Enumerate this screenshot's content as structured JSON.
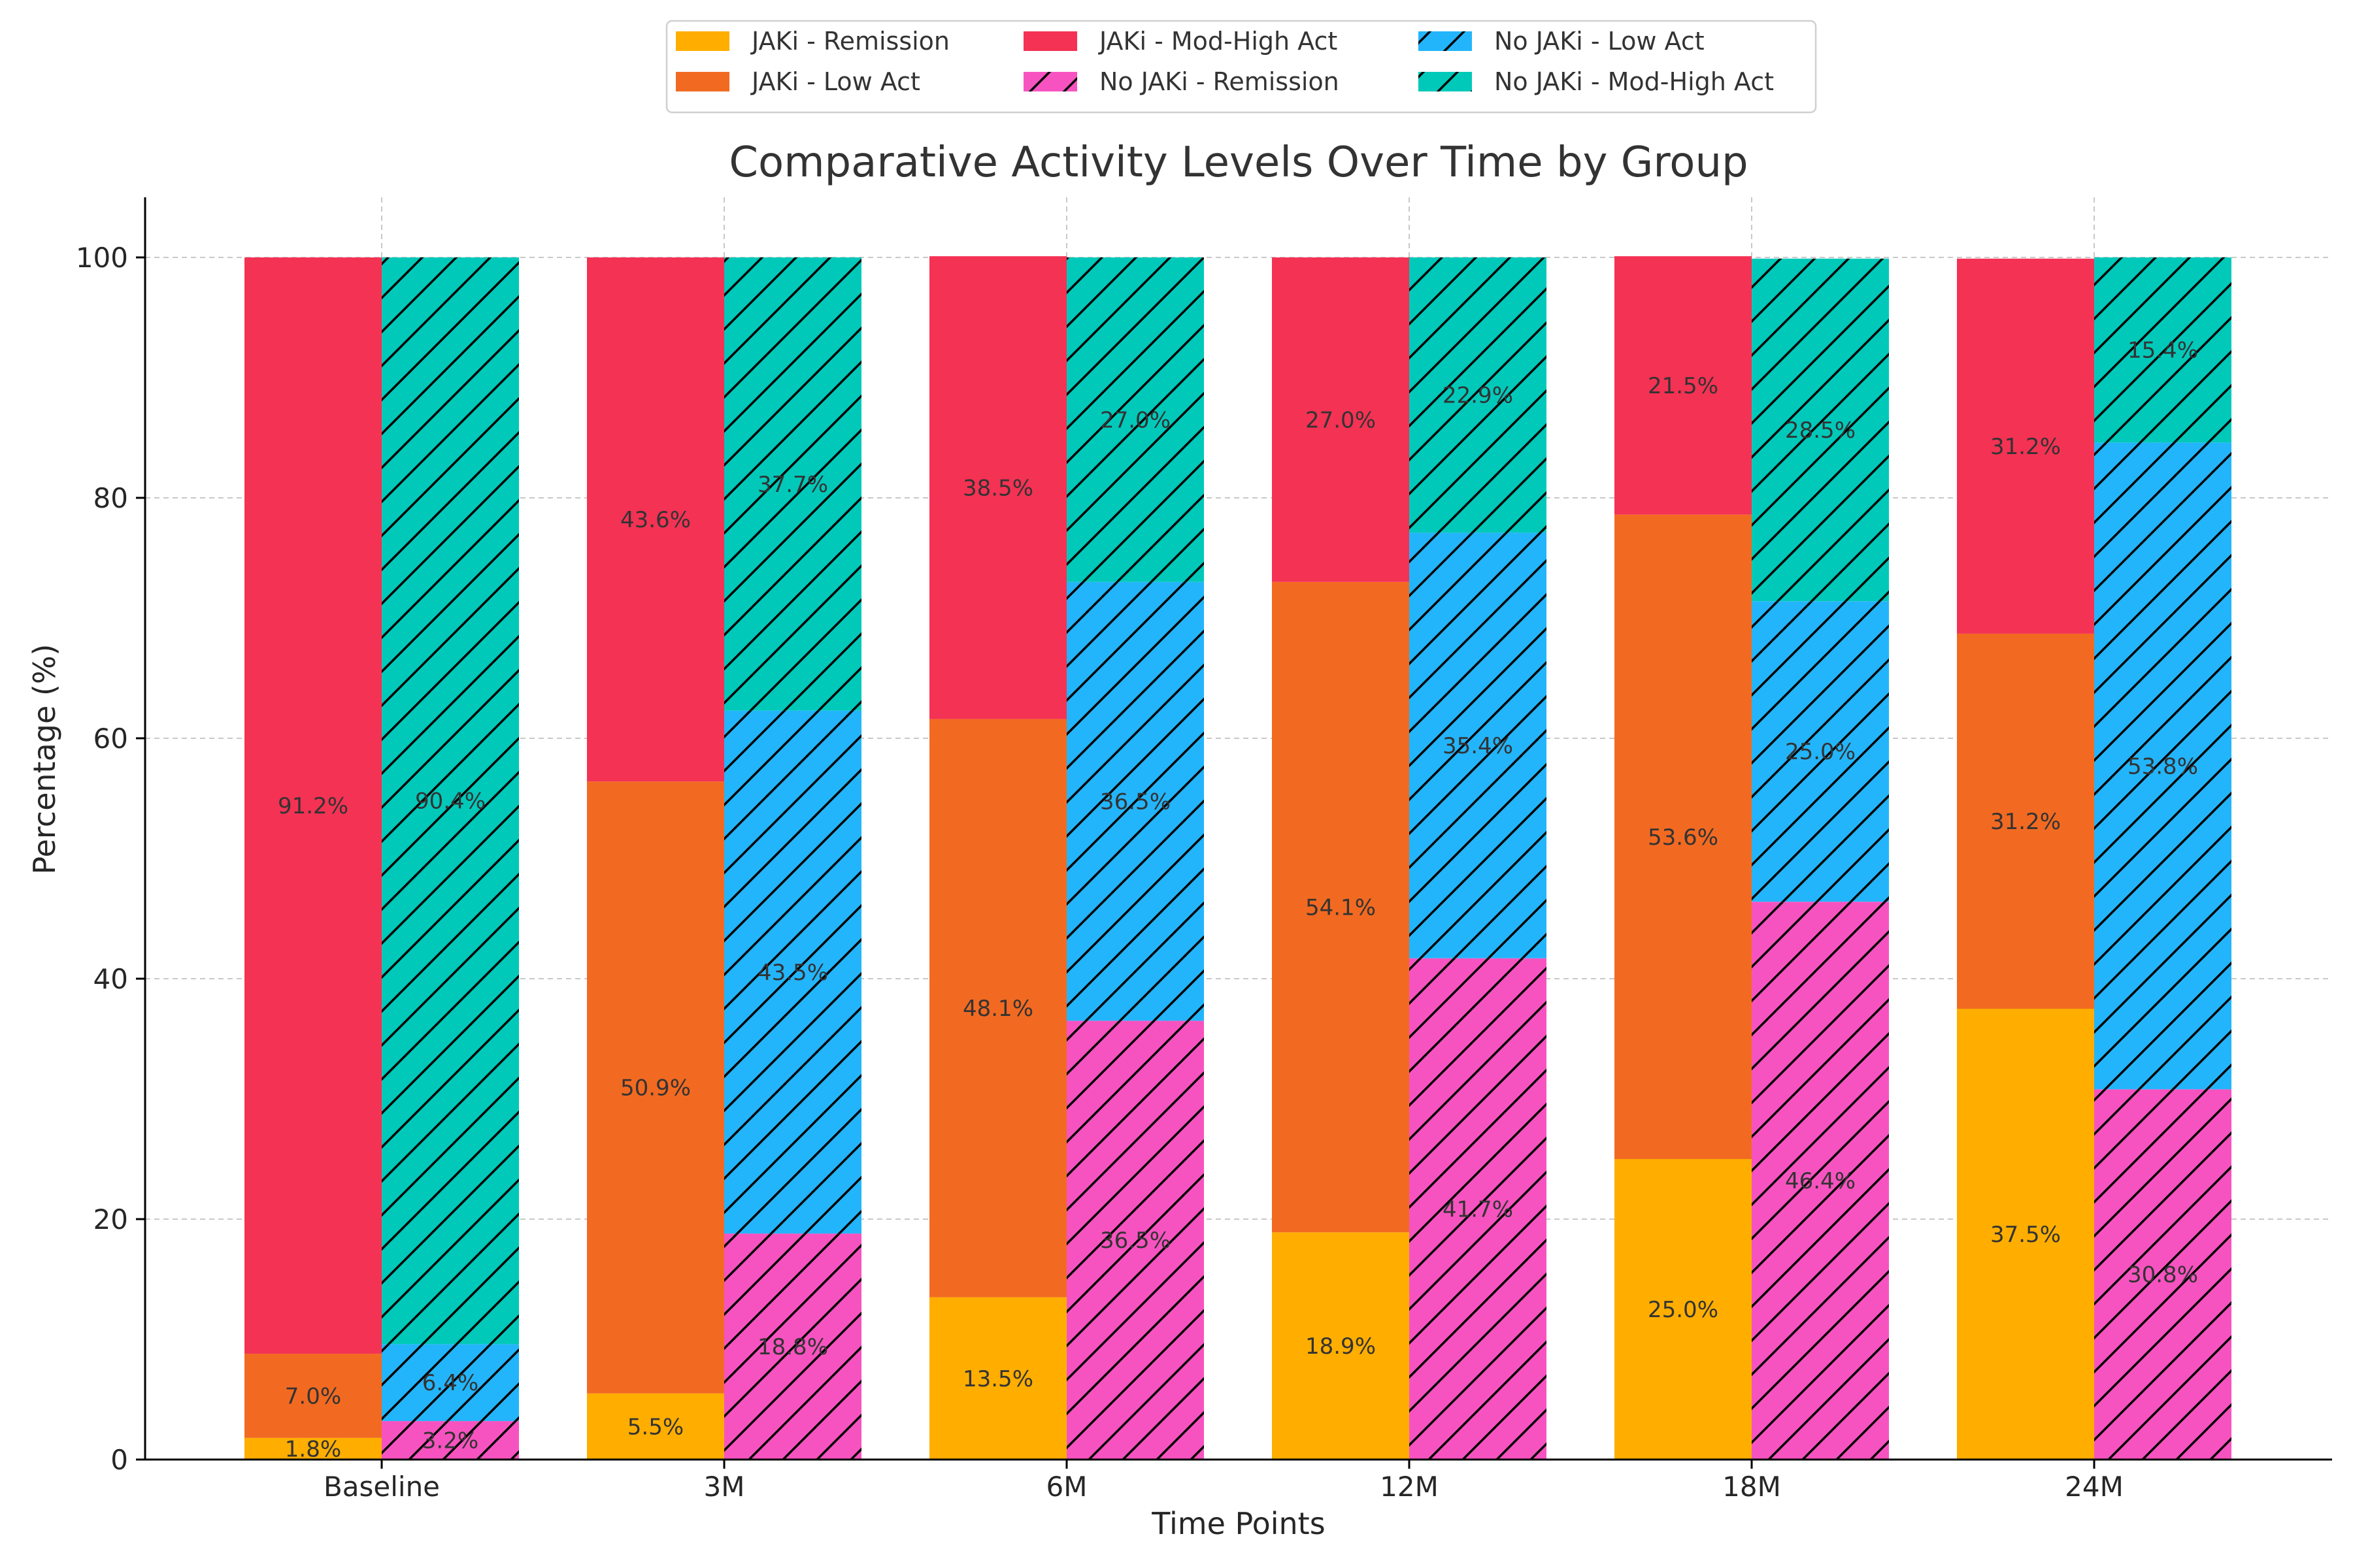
{
  "chart_data": {
    "type": "bar",
    "stacked": true,
    "title": "Comparative Activity Levels Over Time by Group",
    "xlabel": "Time Points",
    "ylabel": "Percentage (%)",
    "ylim": [
      0,
      105
    ],
    "yticks": [
      0,
      20,
      40,
      60,
      80,
      100
    ],
    "grid": true,
    "legend_position": "top-center",
    "categories": [
      "Baseline",
      "3M",
      "6M",
      "12M",
      "18M",
      "24M"
    ],
    "groups": [
      {
        "name": "JAKi",
        "hatched": false,
        "series": [
          {
            "name": "JAKi - Remission",
            "color": "#FFAE00",
            "values": [
              1.8,
              5.5,
              13.5,
              18.9,
              25.0,
              37.5
            ]
          },
          {
            "name": "JAKi - Low Act",
            "color": "#F26A21",
            "values": [
              7.0,
              50.9,
              48.1,
              54.1,
              53.6,
              31.2
            ]
          },
          {
            "name": "JAKi - Mod-High Act",
            "color": "#F43254",
            "values": [
              91.2,
              43.6,
              38.5,
              27.0,
              21.5,
              31.2
            ]
          }
        ]
      },
      {
        "name": "No JAKi",
        "hatched": true,
        "series": [
          {
            "name": "No JAKi - Remission",
            "color": "#F753C0",
            "values": [
              3.2,
              18.8,
              36.5,
              41.7,
              46.4,
              30.8
            ]
          },
          {
            "name": "No JAKi - Low Act",
            "color": "#23B5FB",
            "values": [
              6.4,
              43.5,
              36.5,
              35.4,
              25.0,
              53.8
            ]
          },
          {
            "name": "No JAKi - Mod-High Act",
            "color": "#00C9BA",
            "values": [
              90.4,
              37.7,
              27.0,
              22.9,
              28.5,
              15.4
            ]
          }
        ]
      }
    ],
    "legend_order": [
      "JAKi - Remission",
      "JAKi - Low Act",
      "JAKi - Mod-High Act",
      "No JAKi - Remission",
      "No JAKi - Low Act",
      "No JAKi - Mod-High Act"
    ]
  }
}
